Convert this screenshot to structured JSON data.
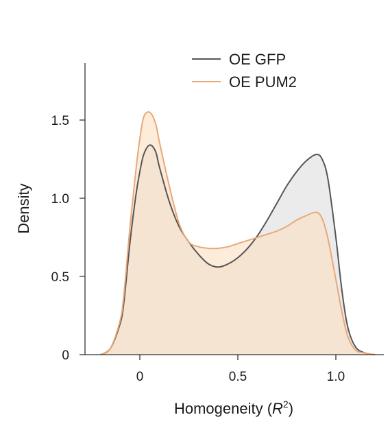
{
  "chart_data": {
    "type": "area",
    "title": "",
    "xlabel": "Homogeneity (",
    "xlabel_var": "R",
    "xlabel_sup": "2",
    "xlabel_close": ")",
    "ylabel": "Density",
    "xlim": [
      -0.22,
      1.22
    ],
    "ylim": [
      0,
      1.85
    ],
    "xticks": [
      0,
      0.5,
      1.0
    ],
    "xtick_labels": [
      "0",
      "0.5",
      "1.0"
    ],
    "yticks": [
      0,
      0.5,
      1.0,
      1.5
    ],
    "ytick_labels": [
      "0",
      "0.5",
      "1.0",
      "1.5"
    ],
    "grid": false,
    "legend_position": "top-right",
    "series": [
      {
        "name": "OE GFP",
        "color": "#555555",
        "fill": "#e8e8e8",
        "x": [
          -0.2,
          -0.15,
          -0.1,
          -0.08,
          -0.05,
          -0.02,
          0.0,
          0.02,
          0.05,
          0.08,
          0.1,
          0.15,
          0.2,
          0.25,
          0.3,
          0.35,
          0.4,
          0.45,
          0.5,
          0.55,
          0.6,
          0.65,
          0.7,
          0.75,
          0.8,
          0.85,
          0.9,
          0.93,
          0.96,
          1.0,
          1.03,
          1.06,
          1.1,
          1.15,
          1.2
        ],
        "y": [
          0.0,
          0.04,
          0.2,
          0.35,
          0.72,
          1.02,
          1.17,
          1.28,
          1.34,
          1.3,
          1.2,
          0.98,
          0.82,
          0.72,
          0.64,
          0.58,
          0.56,
          0.58,
          0.62,
          0.68,
          0.76,
          0.86,
          0.97,
          1.08,
          1.17,
          1.24,
          1.28,
          1.25,
          1.12,
          0.75,
          0.42,
          0.18,
          0.05,
          0.01,
          0.0
        ]
      },
      {
        "name": "OE PUM2",
        "color": "#e8a878",
        "fill": "#fbe1c2",
        "x": [
          -0.2,
          -0.15,
          -0.1,
          -0.08,
          -0.05,
          -0.02,
          0.0,
          0.02,
          0.05,
          0.08,
          0.1,
          0.15,
          0.2,
          0.25,
          0.3,
          0.35,
          0.4,
          0.45,
          0.5,
          0.55,
          0.6,
          0.65,
          0.7,
          0.75,
          0.8,
          0.85,
          0.9,
          0.93,
          0.96,
          1.0,
          1.03,
          1.06,
          1.1,
          1.15,
          1.2
        ],
        "y": [
          0.0,
          0.04,
          0.22,
          0.4,
          0.82,
          1.18,
          1.38,
          1.52,
          1.55,
          1.48,
          1.36,
          1.08,
          0.84,
          0.72,
          0.69,
          0.68,
          0.68,
          0.69,
          0.71,
          0.73,
          0.75,
          0.77,
          0.79,
          0.82,
          0.86,
          0.89,
          0.91,
          0.87,
          0.74,
          0.48,
          0.28,
          0.12,
          0.03,
          0.01,
          0.0
        ]
      }
    ]
  }
}
